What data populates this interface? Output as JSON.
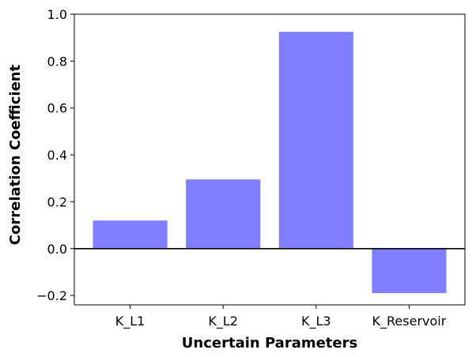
{
  "chart_data": {
    "type": "bar",
    "categories": [
      "K_L1",
      "K_L2",
      "K_L3",
      "K_Reservoir"
    ],
    "values": [
      0.12,
      0.295,
      0.925,
      -0.19
    ],
    "title": "",
    "xlabel": "Uncertain Parameters",
    "ylabel": "Correlation Coefficient",
    "ylim": [
      -0.24,
      1.0
    ],
    "yticks": [
      -0.2,
      0.0,
      0.2,
      0.4,
      0.6,
      0.8,
      1.0
    ],
    "ytick_labels": [
      "−0.2",
      "0.0",
      "0.2",
      "0.4",
      "0.6",
      "0.8",
      "1.0"
    ],
    "bar_color": "#8080ff",
    "zero_line": true,
    "grid": false,
    "legend": "none"
  }
}
